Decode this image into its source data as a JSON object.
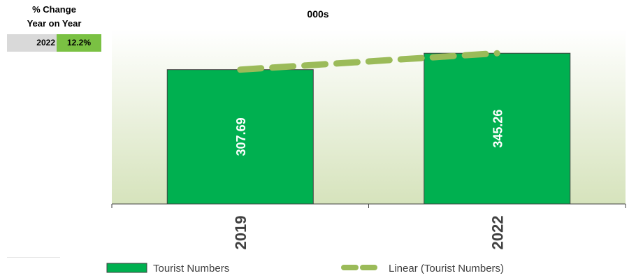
{
  "yoy_panel": {
    "title_line1": "% Change",
    "title_line2": "Year on Year",
    "year": "2022",
    "value": "12.2%",
    "value_color": "#7ac143",
    "year_bg_color": "#d9d9d9"
  },
  "chart_data": {
    "type": "bar",
    "title": "000s",
    "categories": [
      "2019",
      "2022"
    ],
    "series": [
      {
        "name": "Tourist Numbers",
        "values": [
          307.69,
          345.26
        ],
        "color": "#00b050"
      }
    ],
    "data_labels": [
      "307.69",
      "345.26"
    ],
    "trendline": {
      "name": "Linear (Tourist Numbers)",
      "type": "linear",
      "style": "dashed",
      "color": "#9bbb59"
    },
    "ylim": [
      0,
      400
    ],
    "grid": false,
    "legend_position": "bottom",
    "legend": {
      "bar_label": "Tourist Numbers",
      "trend_label": "Linear (Tourist Numbers)"
    }
  }
}
